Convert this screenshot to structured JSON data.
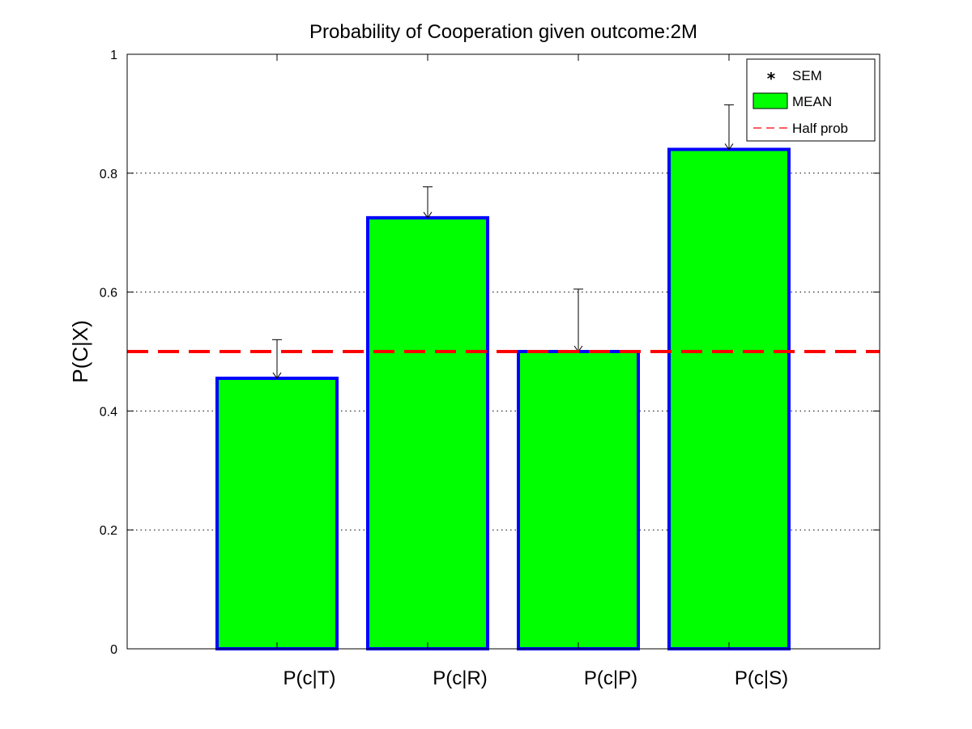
{
  "chart_data": {
    "type": "bar",
    "title": "Probability of Cooperation given outcome:2M",
    "xlabel": "",
    "ylabel": "P(C|X)",
    "categories": [
      "P(c|T)",
      "P(c|R)",
      "P(c|P)",
      "P(c|S)"
    ],
    "values": [
      0.455,
      0.725,
      0.5,
      0.84
    ],
    "sem": [
      0.065,
      0.052,
      0.105,
      0.075
    ],
    "ylim": [
      0,
      1
    ],
    "yticks": [
      "0",
      "0.2",
      "0.4",
      "0.6",
      "0.8",
      "1"
    ],
    "reference_line": {
      "value": 0.5
    },
    "grid": "y-dotted",
    "legend": {
      "placement": "top-right",
      "entries": [
        "SEM",
        "MEAN",
        "Half prob"
      ]
    },
    "colors": {
      "bar_fill": "#00ff00",
      "bar_edge": "#0000ff",
      "reference_line": "#ff0000",
      "error_bar": "#000000"
    }
  }
}
